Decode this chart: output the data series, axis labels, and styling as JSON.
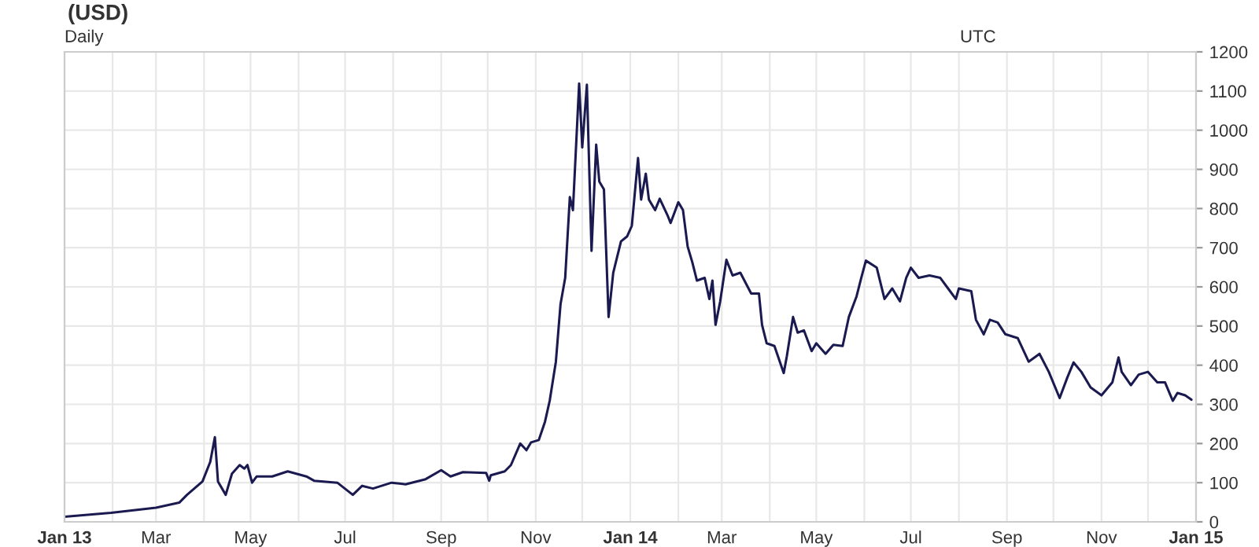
{
  "chart_data": {
    "type": "line",
    "title": "(USD)",
    "annotations": [
      "Daily",
      "UTC"
    ],
    "x": [
      "2013-01-01",
      "2013-01-31",
      "2013-03-01",
      "2013-03-16",
      "2013-03-21",
      "2013-03-31",
      "2013-04-05",
      "2013-04-08",
      "2013-04-10",
      "2013-04-15",
      "2013-04-19",
      "2013-04-24",
      "2013-04-27",
      "2013-04-29",
      "2013-05-02",
      "2013-05-05",
      "2013-05-15",
      "2013-05-25",
      "2013-06-06",
      "2013-06-11",
      "2013-06-26",
      "2013-07-06",
      "2013-07-12",
      "2013-07-19",
      "2013-07-31",
      "2013-08-09",
      "2013-08-22",
      "2013-09-01",
      "2013-09-07",
      "2013-09-15",
      "2013-09-30",
      "2013-10-02",
      "2013-10-03",
      "2013-10-12",
      "2013-10-16",
      "2013-10-22",
      "2013-10-26",
      "2013-10-29",
      "2013-11-03",
      "2013-11-07",
      "2013-11-10",
      "2013-11-14",
      "2013-11-17",
      "2013-11-20",
      "2013-11-23",
      "2013-11-25",
      "2013-11-29",
      "2013-12-01",
      "2013-12-04",
      "2013-12-07",
      "2013-12-10",
      "2013-12-12",
      "2013-12-15",
      "2013-12-18",
      "2013-12-21",
      "2013-12-26",
      "2013-12-30",
      "2014-01-02",
      "2014-01-06",
      "2014-01-08",
      "2014-01-11",
      "2014-01-13",
      "2014-01-17",
      "2014-01-20",
      "2014-01-25",
      "2014-01-27",
      "2014-02-01",
      "2014-02-04",
      "2014-02-07",
      "2014-02-10",
      "2014-02-13",
      "2014-02-18",
      "2014-02-21",
      "2014-02-23",
      "2014-02-25",
      "2014-02-28",
      "2014-03-04",
      "2014-03-08",
      "2014-03-13",
      "2014-03-20",
      "2014-03-25",
      "2014-03-27",
      "2014-03-30",
      "2014-04-04",
      "2014-04-10",
      "2014-04-12",
      "2014-04-16",
      "2014-04-19",
      "2014-04-23",
      "2014-04-28",
      "2014-05-01",
      "2014-05-07",
      "2014-05-12",
      "2014-05-18",
      "2014-05-22",
      "2014-05-27",
      "2014-05-30",
      "2014-06-02",
      "2014-06-09",
      "2014-06-14",
      "2014-06-19",
      "2014-06-24",
      "2014-06-28",
      "2014-07-01",
      "2014-07-06",
      "2014-07-13",
      "2014-07-20",
      "2014-07-25",
      "2014-07-30",
      "2014-08-01",
      "2014-08-09",
      "2014-08-12",
      "2014-08-17",
      "2014-08-21",
      "2014-08-26",
      "2014-08-31",
      "2014-09-08",
      "2014-09-15",
      "2014-09-22",
      "2014-09-28",
      "2014-10-05",
      "2014-10-10",
      "2014-10-14",
      "2014-10-19",
      "2014-10-25",
      "2014-11-01",
      "2014-11-08",
      "2014-11-12",
      "2014-11-14",
      "2014-11-20",
      "2014-11-25",
      "2014-12-01",
      "2014-12-07",
      "2014-12-12",
      "2014-12-17",
      "2014-12-20",
      "2014-12-25",
      "2014-12-29"
    ],
    "series": [
      {
        "color": "#1a1a50",
        "values": [
          13,
          23,
          36,
          49,
          69,
          103,
          153,
          216,
          103,
          69,
          123,
          145,
          136,
          145,
          100,
          116,
          116,
          129,
          116,
          105,
          100,
          69,
          92,
          85,
          100,
          96,
          109,
          132,
          116,
          127,
          125,
          105,
          119,
          129,
          145,
          200,
          183,
          203,
          209,
          256,
          309,
          409,
          556,
          623,
          829,
          796,
          1119,
          956,
          1116,
          692,
          963,
          869,
          849,
          523,
          636,
          716,
          729,
          756,
          929,
          823,
          889,
          823,
          796,
          825,
          783,
          763,
          816,
          796,
          703,
          663,
          616,
          623,
          569,
          616,
          503,
          563,
          669,
          629,
          636,
          583,
          583,
          503,
          456,
          449,
          380,
          423,
          523,
          483,
          489,
          436,
          456,
          429,
          452,
          449,
          523,
          576,
          623,
          667,
          649,
          569,
          596,
          563,
          623,
          649,
          623,
          629,
          623,
          596,
          569,
          596,
          589,
          516,
          479,
          516,
          509,
          479,
          469,
          409,
          429,
          383,
          316,
          369,
          407,
          383,
          343,
          323,
          356,
          420,
          383,
          349,
          376,
          383,
          356,
          356,
          309,
          329,
          323,
          312
        ]
      }
    ],
    "xlim": [
      "2013-01-01",
      "2015-01-01"
    ],
    "xticks": [
      {
        "value": "2013-01-01",
        "label": "Jan 13"
      },
      {
        "value": "2013-02-01",
        "label": null
      },
      {
        "value": "2013-03-01",
        "label": "Mar"
      },
      {
        "value": "2013-04-01",
        "label": null
      },
      {
        "value": "2013-05-01",
        "label": "May"
      },
      {
        "value": "2013-06-01",
        "label": null
      },
      {
        "value": "2013-07-01",
        "label": "Jul"
      },
      {
        "value": "2013-08-01",
        "label": null
      },
      {
        "value": "2013-09-01",
        "label": "Sep"
      },
      {
        "value": "2013-10-01",
        "label": null
      },
      {
        "value": "2013-11-01",
        "label": "Nov"
      },
      {
        "value": "2013-12-01",
        "label": null
      },
      {
        "value": "2014-01-01",
        "label": "Jan 14"
      },
      {
        "value": "2014-02-01",
        "label": null
      },
      {
        "value": "2014-03-01",
        "label": "Mar"
      },
      {
        "value": "2014-04-01",
        "label": null
      },
      {
        "value": "2014-05-01",
        "label": "May"
      },
      {
        "value": "2014-06-01",
        "label": null
      },
      {
        "value": "2014-07-01",
        "label": "Jul"
      },
      {
        "value": "2014-08-01",
        "label": null
      },
      {
        "value": "2014-09-01",
        "label": "Sep"
      },
      {
        "value": "2014-10-01",
        "label": null
      },
      {
        "value": "2014-11-01",
        "label": "Nov"
      },
      {
        "value": "2014-12-01",
        "label": null
      },
      {
        "value": "2015-01-01",
        "label": "Jan 15"
      }
    ],
    "ylim": [
      0,
      1200
    ],
    "yticks": [
      0,
      100,
      200,
      300,
      400,
      500,
      600,
      700,
      800,
      900,
      1000,
      1100,
      1200
    ],
    "grid": true,
    "marker": "none",
    "line_style": "solid"
  }
}
